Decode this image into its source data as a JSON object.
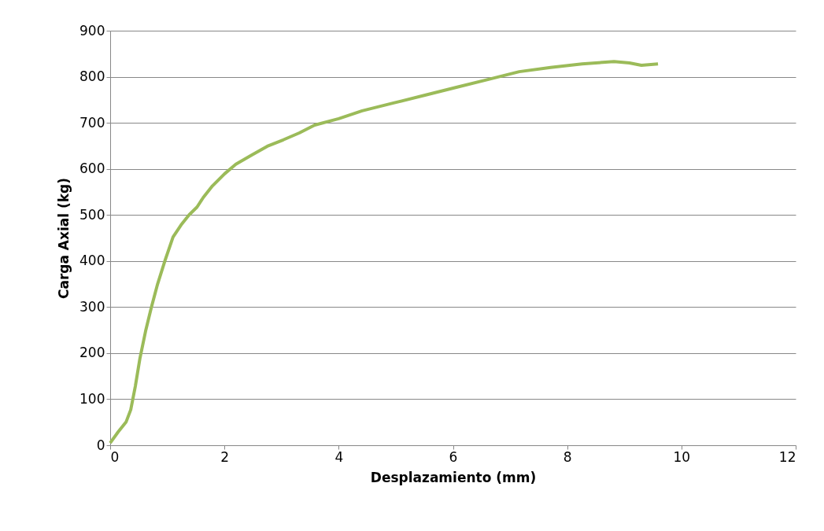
{
  "chart_data": {
    "type": "line",
    "xlabel": "Desplazamiento (mm)",
    "ylabel": "Carga Axial (kg)",
    "x": [
      0,
      0.14,
      0.28,
      0.36,
      0.44,
      0.52,
      0.62,
      0.72,
      0.83,
      0.96,
      1.1,
      1.24,
      1.38,
      1.52,
      1.63,
      1.79,
      2.0,
      2.2,
      2.48,
      2.75,
      3.03,
      3.31,
      3.58,
      4.0,
      4.41,
      4.96,
      5.51,
      6.06,
      6.61,
      7.16,
      7.71,
      8.26,
      8.82,
      9.09,
      9.3,
      9.59
    ],
    "series": [
      {
        "color": "#9bbb59",
        "values": [
          5,
          29,
          51,
          77,
          128,
          188,
          248,
          299,
          350,
          401,
          452,
          478,
          500,
          517,
          538,
          563,
          589,
          610,
          630,
          649,
          663,
          678,
          695,
          709,
          726,
          743,
          760,
          777,
          794,
          811,
          820,
          828,
          833,
          830,
          825,
          828
        ]
      }
    ],
    "xlim": [
      0,
      12
    ],
    "xticks": [
      0,
      2,
      4,
      6,
      8,
      10,
      12
    ],
    "ylim": [
      0,
      900
    ],
    "yticks": [
      0,
      100,
      200,
      300,
      400,
      500,
      600,
      700,
      800,
      900
    ],
    "grid": "y",
    "marker": "none",
    "line_style": "solid"
  }
}
